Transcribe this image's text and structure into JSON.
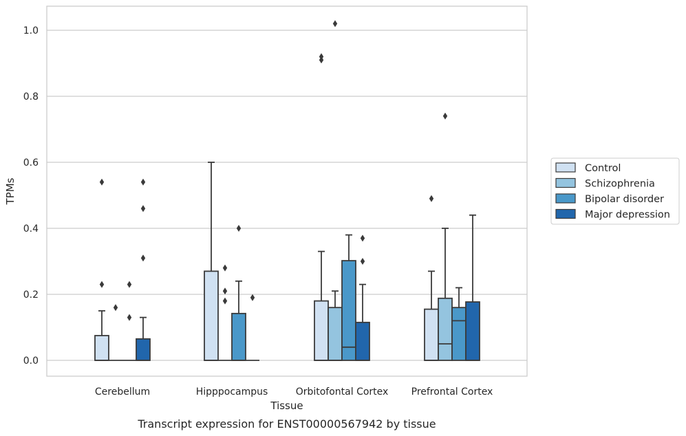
{
  "chart_data": {
    "type": "box",
    "xlabel": "Tissue",
    "ylabel": "TPMs",
    "caption": "Transcript expression for ENST00000567942 by tissue",
    "ylim": [
      -0.05,
      1.07
    ],
    "yticks": [
      "0.0",
      "0.2",
      "0.4",
      "0.6",
      "0.8",
      "1.0"
    ],
    "ytick_values": [
      0.0,
      0.2,
      0.4,
      0.6,
      0.8,
      1.0
    ],
    "grid": "horizontal",
    "legend_position": "right",
    "categories": [
      "Cerebellum",
      "Hipppocampus",
      "Orbitofontal Cortex",
      "Prefrontal Cortex"
    ],
    "series": [
      {
        "name": "Control",
        "color": "#d0e1f2",
        "boxes": [
          {
            "q1": 0.0,
            "median": 0.0,
            "q3": 0.075,
            "whisker_low": 0.0,
            "whisker_high": 0.15,
            "outliers": [
              0.23,
              0.54
            ]
          },
          {
            "q1": 0.0,
            "median": 0.0,
            "q3": 0.27,
            "whisker_low": 0.0,
            "whisker_high": 0.6,
            "outliers": []
          },
          {
            "q1": 0.0,
            "median": 0.0,
            "q3": 0.18,
            "whisker_low": 0.0,
            "whisker_high": 0.33,
            "outliers": [
              0.91,
              0.92
            ]
          },
          {
            "q1": 0.0,
            "median": 0.0,
            "q3": 0.155,
            "whisker_low": 0.0,
            "whisker_high": 0.27,
            "outliers": [
              0.49
            ]
          }
        ]
      },
      {
        "name": "Schizophrenia",
        "color": "#94c4df",
        "boxes": [
          {
            "q1": 0.0,
            "median": 0.0,
            "q3": 0.0,
            "whisker_low": 0.0,
            "whisker_high": 0.0,
            "outliers": [
              0.16
            ]
          },
          {
            "q1": 0.0,
            "median": 0.0,
            "q3": 0.0,
            "whisker_low": 0.0,
            "whisker_high": 0.0,
            "outliers": [
              0.18,
              0.21,
              0.28
            ]
          },
          {
            "q1": 0.0,
            "median": 0.0,
            "q3": 0.16,
            "whisker_low": 0.0,
            "whisker_high": 0.21,
            "outliers": [
              1.02
            ]
          },
          {
            "q1": 0.0,
            "median": 0.05,
            "q3": 0.188,
            "whisker_low": 0.0,
            "whisker_high": 0.4,
            "outliers": [
              0.74
            ]
          }
        ]
      },
      {
        "name": "Bipolar disorder",
        "color": "#4a98c9",
        "boxes": [
          {
            "q1": 0.0,
            "median": 0.0,
            "q3": 0.0,
            "whisker_low": 0.0,
            "whisker_high": 0.0,
            "outliers": [
              0.13,
              0.23
            ]
          },
          {
            "q1": 0.0,
            "median": 0.0,
            "q3": 0.142,
            "whisker_low": 0.0,
            "whisker_high": 0.24,
            "outliers": [
              0.4
            ]
          },
          {
            "q1": 0.0,
            "median": 0.04,
            "q3": 0.302,
            "whisker_low": 0.0,
            "whisker_high": 0.38,
            "outliers": []
          },
          {
            "q1": 0.0,
            "median": 0.12,
            "q3": 0.16,
            "whisker_low": 0.0,
            "whisker_high": 0.22,
            "outliers": []
          }
        ]
      },
      {
        "name": "Major depression",
        "color": "#2166ac",
        "boxes": [
          {
            "q1": 0.0,
            "median": 0.0,
            "q3": 0.065,
            "whisker_low": 0.0,
            "whisker_high": 0.13,
            "outliers": [
              0.31,
              0.46,
              0.54
            ]
          },
          {
            "q1": 0.0,
            "median": 0.0,
            "q3": 0.0,
            "whisker_low": 0.0,
            "whisker_high": 0.0,
            "outliers": [
              0.19
            ]
          },
          {
            "q1": 0.0,
            "median": 0.0,
            "q3": 0.115,
            "whisker_low": 0.0,
            "whisker_high": 0.23,
            "outliers": [
              0.3,
              0.37
            ]
          },
          {
            "q1": 0.0,
            "median": 0.0,
            "q3": 0.177,
            "whisker_low": 0.0,
            "whisker_high": 0.44,
            "outliers": []
          }
        ]
      }
    ]
  }
}
